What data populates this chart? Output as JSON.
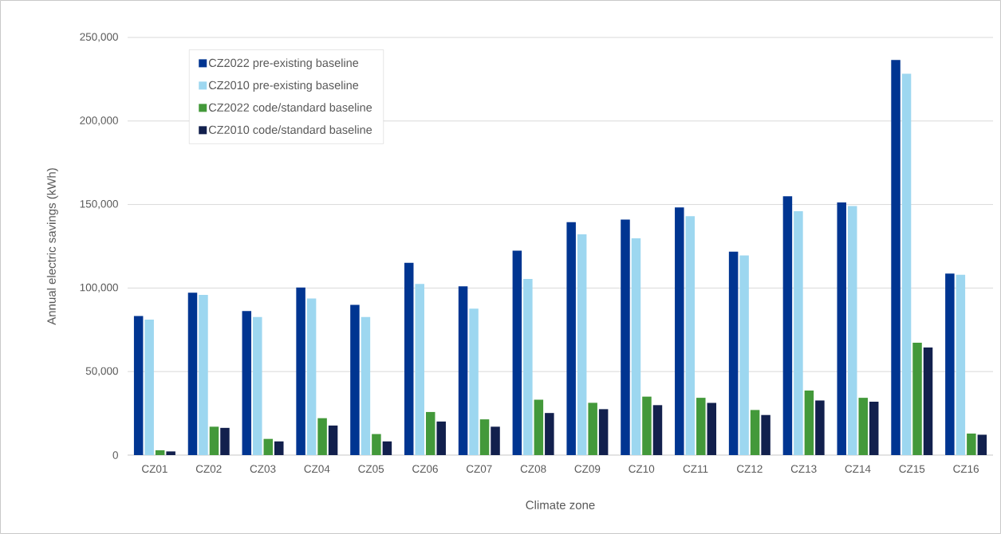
{
  "chart_data": {
    "type": "bar",
    "xlabel": "Climate zone",
    "ylabel": "Annual electric  savings (kWh)",
    "categories": [
      "CZ01",
      "CZ02",
      "CZ03",
      "CZ04",
      "CZ05",
      "CZ06",
      "CZ07",
      "CZ08",
      "CZ09",
      "CZ10",
      "CZ11",
      "CZ12",
      "CZ13",
      "CZ14",
      "CZ15",
      "CZ16"
    ],
    "series": [
      {
        "name": "CZ2022 pre-existing baseline",
        "color": "#003591",
        "values": [
          83300,
          97200,
          86200,
          100300,
          89900,
          115100,
          101000,
          122400,
          139400,
          141000,
          148200,
          121800,
          154900,
          151200,
          236500,
          108600
        ]
      },
      {
        "name": "CZ2010 pre-existing baseline",
        "color": "#9dd7f0",
        "values": [
          81100,
          95900,
          82600,
          93700,
          82600,
          102500,
          87700,
          105400,
          132100,
          129800,
          143000,
          119500,
          146000,
          149100,
          228300,
          107900
        ]
      },
      {
        "name": "CZ2022 code/standard baseline",
        "color": "#43993a",
        "values": [
          2900,
          17000,
          9700,
          22100,
          12600,
          25800,
          21400,
          33200,
          31300,
          35000,
          34300,
          27000,
          38600,
          34300,
          67300,
          12900
        ]
      },
      {
        "name": "CZ2010 code/standard baseline",
        "color": "#12204d",
        "values": [
          2200,
          16300,
          8200,
          17700,
          8200,
          20100,
          17000,
          25200,
          27500,
          29900,
          31300,
          24000,
          32700,
          32000,
          64400,
          12200
        ]
      }
    ],
    "ylim": [
      0,
      250000
    ],
    "yticks": [
      {
        "value": 0,
        "label": "0"
      },
      {
        "value": 50000,
        "label": "50,000"
      },
      {
        "value": 100000,
        "label": "100,000"
      },
      {
        "value": 150000,
        "label": "150,000"
      },
      {
        "value": 200000,
        "label": "200,000"
      },
      {
        "value": 250000,
        "label": "250,000"
      }
    ],
    "grid": "y",
    "legend": "top left"
  }
}
